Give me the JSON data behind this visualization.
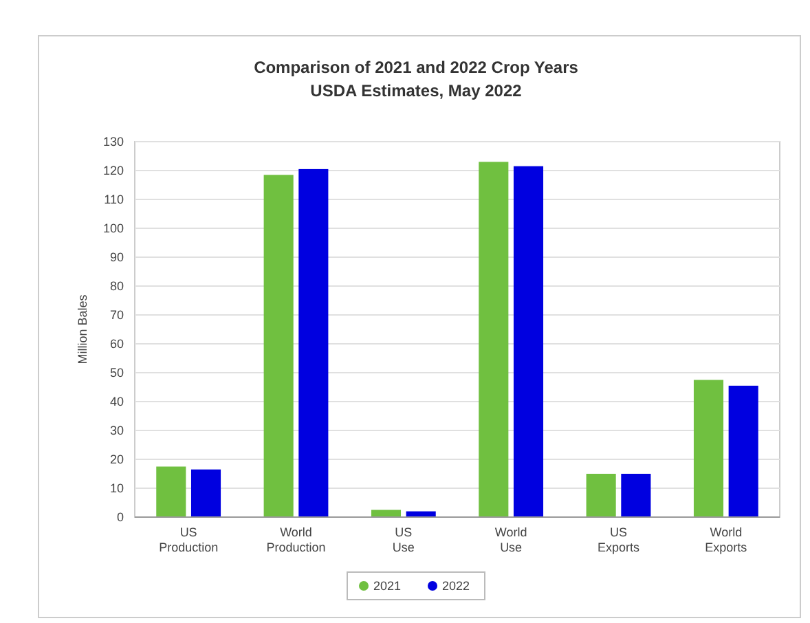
{
  "chart_data": {
    "type": "bar",
    "title": "Comparison of 2021 and 2022 Crop Years",
    "subtitle": "USDA Estimates, May 2022",
    "ylabel": "Million Bales",
    "categories": [
      "US Production",
      "World Production",
      "US Use",
      "World Use",
      "US Exports",
      "World Exports"
    ],
    "series": [
      {
        "name": "2021",
        "color": "#70c040",
        "values": [
          17.5,
          118.5,
          2.5,
          123,
          15,
          47.5
        ]
      },
      {
        "name": "2022",
        "color": "#0000e0",
        "values": [
          16.5,
          120.5,
          2,
          121.5,
          15,
          45.5
        ]
      }
    ],
    "ylim": [
      0,
      130
    ],
    "yticks": [
      0,
      10,
      20,
      30,
      40,
      50,
      60,
      70,
      80,
      90,
      100,
      110,
      120,
      130
    ],
    "grid": "y",
    "legend": "bottom"
  }
}
